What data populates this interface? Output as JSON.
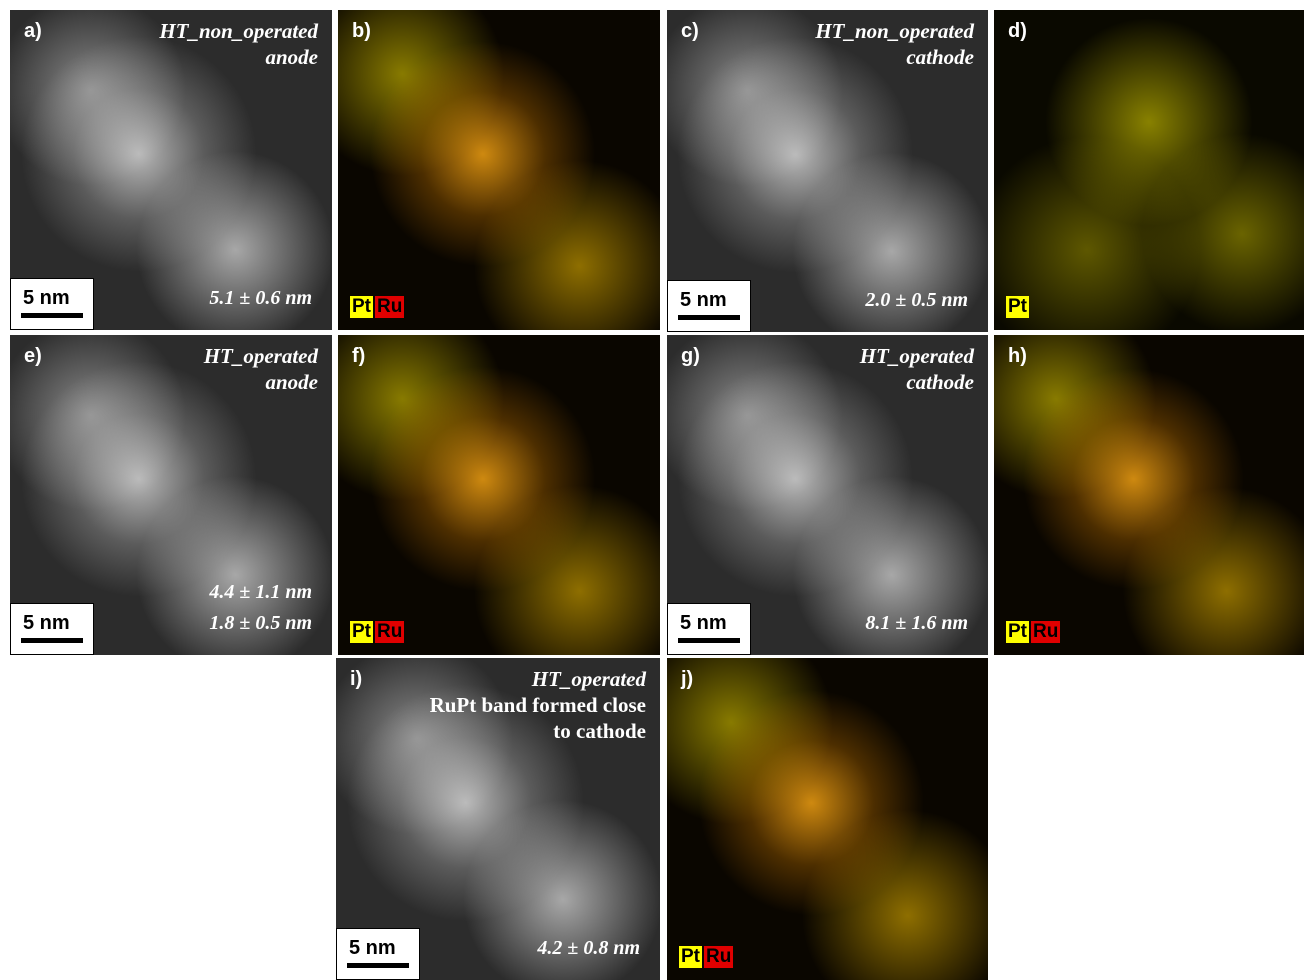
{
  "panels": [
    {
      "label": "a)",
      "title": [
        "HT_non_operated",
        "anode"
      ],
      "size": [
        "5.1 ± 0.6 nm"
      ],
      "scale": "5 nm"
    },
    {
      "label": "b)",
      "legend": [
        "Pt",
        "Ru"
      ]
    },
    {
      "label": "c)",
      "title": [
        "HT_non_operated",
        "cathode"
      ],
      "size": [
        "2.0 ± 0.5 nm"
      ],
      "scale": "5 nm"
    },
    {
      "label": "d)",
      "legend": [
        "Pt"
      ]
    },
    {
      "label": "e)",
      "title": [
        "HT_operated",
        "anode"
      ],
      "size": [
        "4.4 ± 1.1 nm",
        "1.8 ± 0.5 nm"
      ],
      "scale": "5 nm"
    },
    {
      "label": "f)",
      "legend": [
        "Pt",
        "Ru"
      ]
    },
    {
      "label": "g)",
      "title": [
        "HT_operated",
        "cathode"
      ],
      "size": [
        "8.1 ± 1.6 nm"
      ],
      "scale": "5 nm"
    },
    {
      "label": "h)",
      "legend": [
        "Pt",
        "Ru"
      ]
    },
    {
      "label": "i)",
      "title": [
        "HT_operated"
      ],
      "note": [
        "RuPt band formed close",
        "to cathode"
      ],
      "size": [
        "4.2 ± 0.8 nm"
      ],
      "scale": "5 nm"
    },
    {
      "label": "j)",
      "legend": [
        "Pt",
        "Ru"
      ]
    }
  ]
}
